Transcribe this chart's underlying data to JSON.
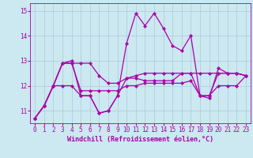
{
  "title": "",
  "xlabel": "Windchill (Refroidissement éolien,°C)",
  "bg_color": "#cce8f0",
  "grid_color": "#aaccdd",
  "line_color": "#aa00aa",
  "xlim": [
    -0.5,
    23.5
  ],
  "ylim": [
    10.5,
    15.3
  ],
  "yticks": [
    11,
    12,
    13,
    14,
    15
  ],
  "xticks": [
    0,
    1,
    2,
    3,
    4,
    5,
    6,
    7,
    8,
    9,
    10,
    11,
    12,
    13,
    14,
    15,
    16,
    17,
    18,
    19,
    20,
    21,
    22,
    23
  ],
  "series": [
    [
      10.7,
      11.2,
      12.0,
      12.9,
      13.0,
      11.6,
      11.6,
      10.9,
      11.0,
      11.6,
      13.7,
      14.9,
      14.4,
      14.9,
      14.3,
      13.6,
      13.4,
      14.0,
      11.6,
      11.5,
      12.7,
      12.5,
      12.5,
      12.4
    ],
    [
      10.7,
      11.2,
      12.0,
      12.9,
      12.9,
      12.9,
      12.9,
      12.4,
      12.1,
      12.1,
      12.3,
      12.4,
      12.5,
      12.5,
      12.5,
      12.5,
      12.5,
      12.5,
      12.5,
      12.5,
      12.5,
      12.5,
      12.5,
      12.4
    ],
    [
      10.7,
      11.2,
      12.0,
      12.9,
      12.9,
      11.8,
      11.8,
      11.8,
      11.8,
      11.8,
      12.0,
      12.0,
      12.1,
      12.1,
      12.1,
      12.1,
      12.1,
      12.2,
      11.6,
      11.6,
      12.0,
      12.0,
      12.0,
      12.4
    ],
    [
      10.7,
      11.2,
      12.0,
      12.0,
      12.0,
      11.6,
      11.6,
      10.9,
      11.0,
      11.6,
      12.3,
      12.3,
      12.2,
      12.2,
      12.2,
      12.2,
      12.5,
      12.5,
      11.6,
      11.6,
      12.5,
      12.5,
      12.5,
      12.4
    ]
  ],
  "tick_fontsize": 5.5,
  "xlabel_fontsize": 6.0,
  "marker_size": 2.2,
  "linewidth": 0.9
}
